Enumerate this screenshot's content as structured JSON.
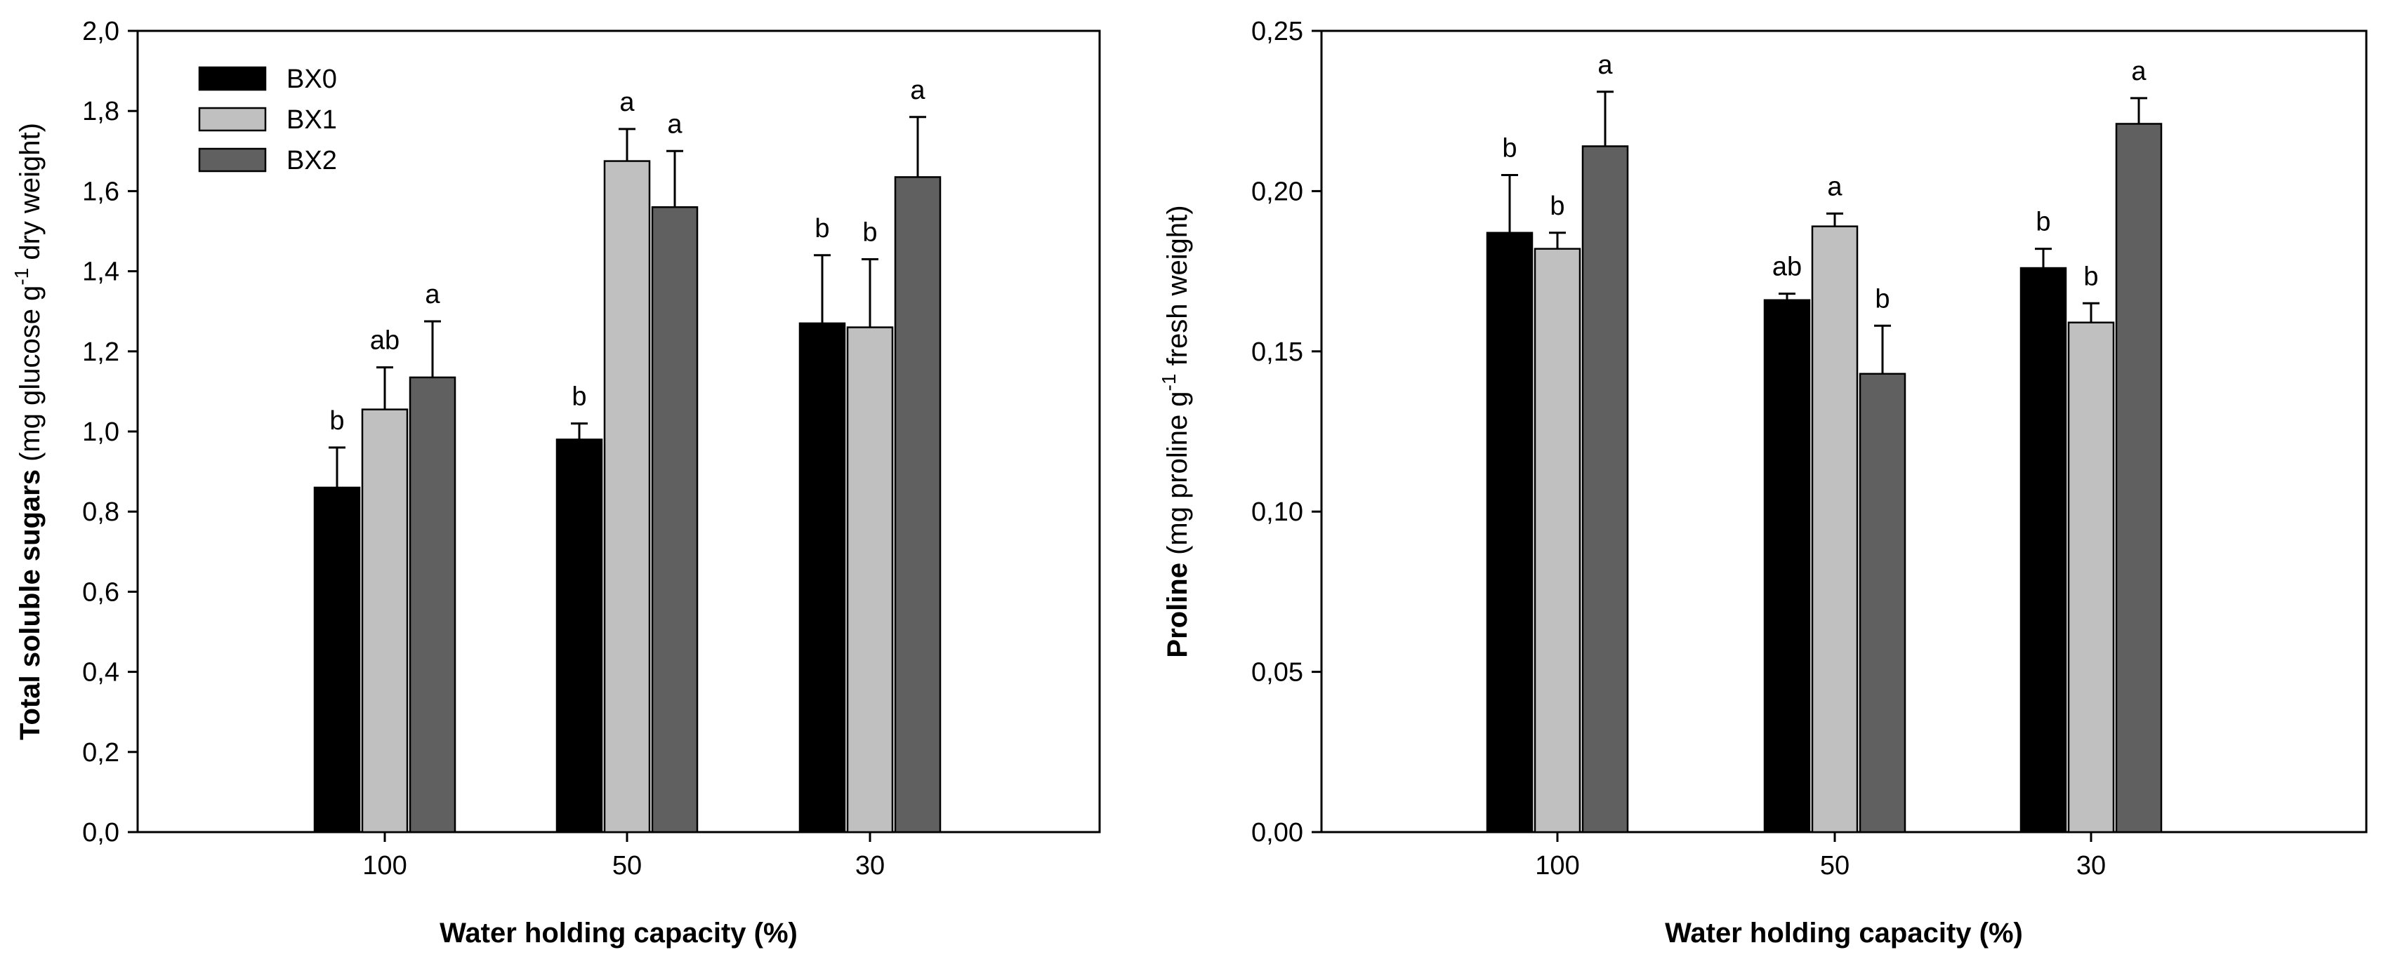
{
  "chart_data": [
    {
      "type": "bar",
      "categories": [
        "100",
        "50",
        "30"
      ],
      "series": [
        {
          "name": "BX0",
          "color": "#000000",
          "values": [
            0.86,
            0.98,
            1.27
          ],
          "errors": [
            0.1,
            0.04,
            0.17
          ],
          "letters": [
            "b",
            "b",
            "b"
          ]
        },
        {
          "name": "BX1",
          "color": "#c0c0c0",
          "values": [
            1.055,
            1.675,
            1.26
          ],
          "errors": [
            0.105,
            0.08,
            0.17
          ],
          "letters": [
            "ab",
            "a",
            "b"
          ]
        },
        {
          "name": "BX2",
          "color": "#606060",
          "values": [
            1.135,
            1.56,
            1.635
          ],
          "errors": [
            0.14,
            0.14,
            0.15
          ],
          "letters": [
            "a",
            "a",
            "a"
          ]
        }
      ],
      "ylim": [
        0,
        2.0
      ],
      "yticks": [
        "0,0",
        "0,2",
        "0,4",
        "0,6",
        "0,8",
        "1,0",
        "1,2",
        "1,4",
        "1,6",
        "1,8",
        "2,0"
      ],
      "xlabel": "Water holding capacity (%)",
      "ylabel_bold": "Total soluble sugars",
      "ylabel_pre": " (mg glucose g",
      "ylabel_sup": "-1",
      "ylabel_post": " dry weight)",
      "legend": true,
      "legend_position": "top-left"
    },
    {
      "type": "bar",
      "categories": [
        "100",
        "50",
        "30"
      ],
      "series": [
        {
          "name": "BX0",
          "color": "#000000",
          "values": [
            0.187,
            0.166,
            0.176
          ],
          "errors": [
            0.018,
            0.002,
            0.006
          ],
          "letters": [
            "b",
            "ab",
            "b"
          ]
        },
        {
          "name": "BX1",
          "color": "#c0c0c0",
          "values": [
            0.182,
            0.189,
            0.159
          ],
          "errors": [
            0.005,
            0.004,
            0.006
          ],
          "letters": [
            "b",
            "a",
            "b"
          ]
        },
        {
          "name": "BX2",
          "color": "#606060",
          "values": [
            0.214,
            0.143,
            0.221
          ],
          "errors": [
            0.017,
            0.015,
            0.008
          ],
          "letters": [
            "a",
            "b",
            "a"
          ]
        }
      ],
      "ylim": [
        0,
        0.25
      ],
      "yticks": [
        "0,00",
        "0,05",
        "0,10",
        "0,15",
        "0,20",
        "0,25"
      ],
      "xlabel": "Water holding capacity (%)",
      "ylabel_bold": "Proline",
      "ylabel_pre": " (mg proline g",
      "ylabel_sup": "-1",
      "ylabel_post": " fresh weight)",
      "legend": false
    }
  ]
}
